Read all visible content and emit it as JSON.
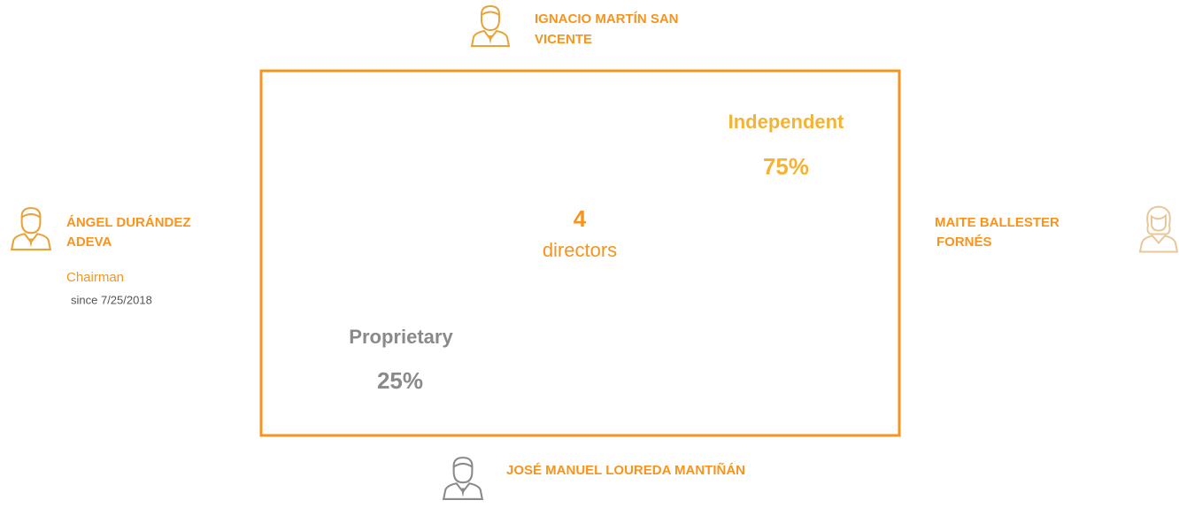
{
  "board": {
    "total": {
      "count": "4",
      "label": "directors"
    },
    "groups": [
      {
        "name": "Independent",
        "share": "75%"
      },
      {
        "name": "Proprietary",
        "share": "25%"
      }
    ],
    "directors": [
      {
        "name_lines": [
          "IGNACIO MARTÍN SAN",
          "VICENTE"
        ]
      },
      {
        "name_lines": [
          "ÁNGEL DURÁNDEZ",
          "ADEVA"
        ],
        "role": "Chairman",
        "since": "since 7/25/2018"
      },
      {
        "name_lines": [
          "MAITE BALLESTER",
          "FORNÉS"
        ]
      },
      {
        "name_lines": [
          "JOSÉ MANUEL LOUREDA MANTIÑÁN"
        ]
      }
    ]
  }
}
